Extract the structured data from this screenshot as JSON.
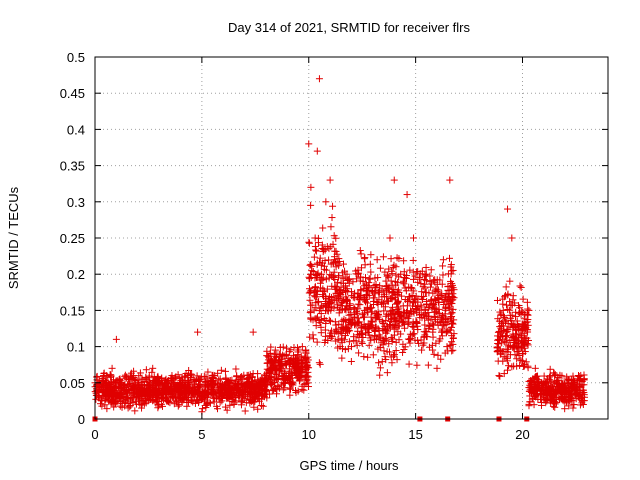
{
  "chart_data": {
    "type": "scatter",
    "title": "Day 314 of 2021, SRMTID for receiver flrs",
    "xlabel": "GPS time / hours",
    "ylabel": "SRMTID / TECUs",
    "xlim": [
      0,
      24
    ],
    "ylim": [
      0,
      0.5
    ],
    "x_ticks": [
      0,
      5,
      10,
      15,
      20
    ],
    "y_ticks": [
      0,
      0.05,
      0.1,
      0.15,
      0.2,
      0.25,
      0.3,
      0.35,
      0.4,
      0.45,
      0.5
    ],
    "grid": true,
    "marker": "plus",
    "color": "#e00000",
    "series_profile": [
      {
        "x_range": [
          0.0,
          8.0
        ],
        "typical": 0.04,
        "spread": 0.02,
        "max": 0.12
      },
      {
        "x_range": [
          8.0,
          10.0
        ],
        "typical": 0.07,
        "spread": 0.03,
        "max": 0.1
      },
      {
        "x_range": [
          10.0,
          11.5
        ],
        "typical": 0.18,
        "spread": 0.08,
        "max": 0.47
      },
      {
        "x_range": [
          11.5,
          16.8
        ],
        "typical": 0.15,
        "spread": 0.06,
        "max": 0.33
      },
      {
        "x_range": [
          18.8,
          20.3
        ],
        "typical": 0.12,
        "spread": 0.05,
        "max": 0.29
      },
      {
        "x_range": [
          20.3,
          22.9
        ],
        "typical": 0.04,
        "spread": 0.02,
        "max": 0.085
      }
    ],
    "gaps": [
      [
        16.8,
        18.8
      ]
    ],
    "points": [
      [
        0.0,
        0.05
      ],
      [
        0.2,
        0.03
      ],
      [
        0.4,
        0.06
      ],
      [
        0.6,
        0.04
      ],
      [
        0.8,
        0.07
      ],
      [
        1.0,
        0.11
      ],
      [
        1.2,
        0.05
      ],
      [
        1.5,
        0.03
      ],
      [
        1.8,
        0.06
      ],
      [
        2.1,
        0.02
      ],
      [
        2.4,
        0.04
      ],
      [
        2.7,
        0.07
      ],
      [
        3.0,
        0.05
      ],
      [
        3.3,
        0.03
      ],
      [
        3.6,
        0.06
      ],
      [
        3.9,
        0.04
      ],
      [
        4.2,
        0.05
      ],
      [
        4.5,
        0.03
      ],
      [
        4.8,
        0.12
      ],
      [
        5.0,
        0.01
      ],
      [
        5.3,
        0.04
      ],
      [
        5.6,
        0.06
      ],
      [
        5.9,
        0.03
      ],
      [
        6.2,
        0.05
      ],
      [
        6.5,
        0.02
      ],
      [
        6.8,
        0.04
      ],
      [
        7.1,
        0.05
      ],
      [
        7.4,
        0.12
      ],
      [
        7.7,
        0.05
      ],
      [
        8.0,
        0.06
      ],
      [
        8.2,
        0.09
      ],
      [
        8.5,
        0.07
      ],
      [
        8.8,
        0.05
      ],
      [
        9.1,
        0.08
      ],
      [
        9.4,
        0.06
      ],
      [
        9.7,
        0.1
      ],
      [
        10.0,
        0.38
      ],
      [
        10.1,
        0.32
      ],
      [
        10.3,
        0.25
      ],
      [
        10.4,
        0.37
      ],
      [
        10.5,
        0.47
      ],
      [
        10.6,
        0.2
      ],
      [
        10.8,
        0.3
      ],
      [
        11.0,
        0.33
      ],
      [
        11.2,
        0.22
      ],
      [
        11.5,
        0.12
      ],
      [
        11.8,
        0.18
      ],
      [
        12.0,
        0.1
      ],
      [
        12.3,
        0.2
      ],
      [
        12.6,
        0.15
      ],
      [
        12.9,
        0.13
      ],
      [
        13.2,
        0.22
      ],
      [
        13.5,
        0.16
      ],
      [
        13.8,
        0.25
      ],
      [
        14.0,
        0.33
      ],
      [
        14.3,
        0.2
      ],
      [
        14.6,
        0.31
      ],
      [
        14.9,
        0.25
      ],
      [
        15.2,
        0.14
      ],
      [
        15.5,
        0.2
      ],
      [
        15.8,
        0.12
      ],
      [
        16.0,
        0.07
      ],
      [
        16.3,
        0.22
      ],
      [
        16.6,
        0.33
      ],
      [
        18.9,
        0.06
      ],
      [
        19.1,
        0.15
      ],
      [
        19.3,
        0.29
      ],
      [
        19.5,
        0.25
      ],
      [
        19.7,
        0.11
      ],
      [
        20.0,
        0.09
      ],
      [
        20.3,
        0.15
      ],
      [
        20.6,
        0.07
      ],
      [
        20.9,
        0.05
      ],
      [
        21.2,
        0.04
      ],
      [
        21.5,
        0.06
      ],
      [
        21.8,
        0.03
      ],
      [
        22.1,
        0.05
      ],
      [
        22.4,
        0.02
      ],
      [
        22.7,
        0.04
      ],
      [
        22.9,
        0.03
      ]
    ],
    "baseline_markers_x": [
      0.0,
      15.2,
      16.5,
      18.9,
      20.2
    ]
  }
}
